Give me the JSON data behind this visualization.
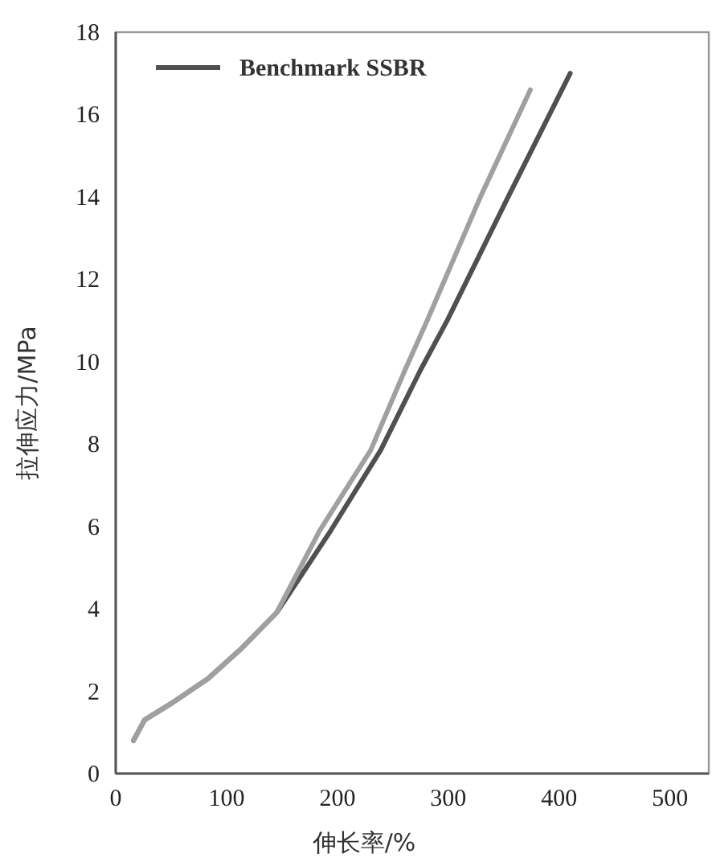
{
  "chart_data": {
    "type": "line",
    "xlabel": "伸长率/%",
    "ylabel": "拉伸应力/MPa",
    "xlim": [
      0,
      535
    ],
    "ylim": [
      0,
      18
    ],
    "xticks": [
      0,
      100,
      200,
      300,
      400,
      500
    ],
    "yticks": [
      0,
      2,
      4,
      6,
      8,
      10,
      12,
      14,
      16,
      18
    ],
    "grid": false,
    "legend": "top left",
    "marker": "none",
    "line_style": "solid",
    "series": [
      {
        "name": "Benchmark SSBR",
        "color": "#505050",
        "x": [
          16,
          26,
          50,
          83,
          112,
          145,
          194,
          239,
          275,
          299,
          354,
          410
        ],
        "values": [
          0.8,
          1.3,
          1.7,
          2.3,
          3.0,
          3.9,
          5.9,
          7.85,
          9.8,
          11.0,
          14.0,
          17.0
        ]
      },
      {
        "color": "#a0a0a0",
        "x": [
          16,
          26,
          50,
          83,
          112,
          145,
          184,
          230,
          261,
          281,
          329,
          374
        ],
        "values": [
          0.8,
          1.3,
          1.7,
          2.3,
          3.0,
          3.9,
          5.9,
          7.85,
          9.8,
          11.0,
          14.0,
          16.6
        ]
      }
    ]
  }
}
